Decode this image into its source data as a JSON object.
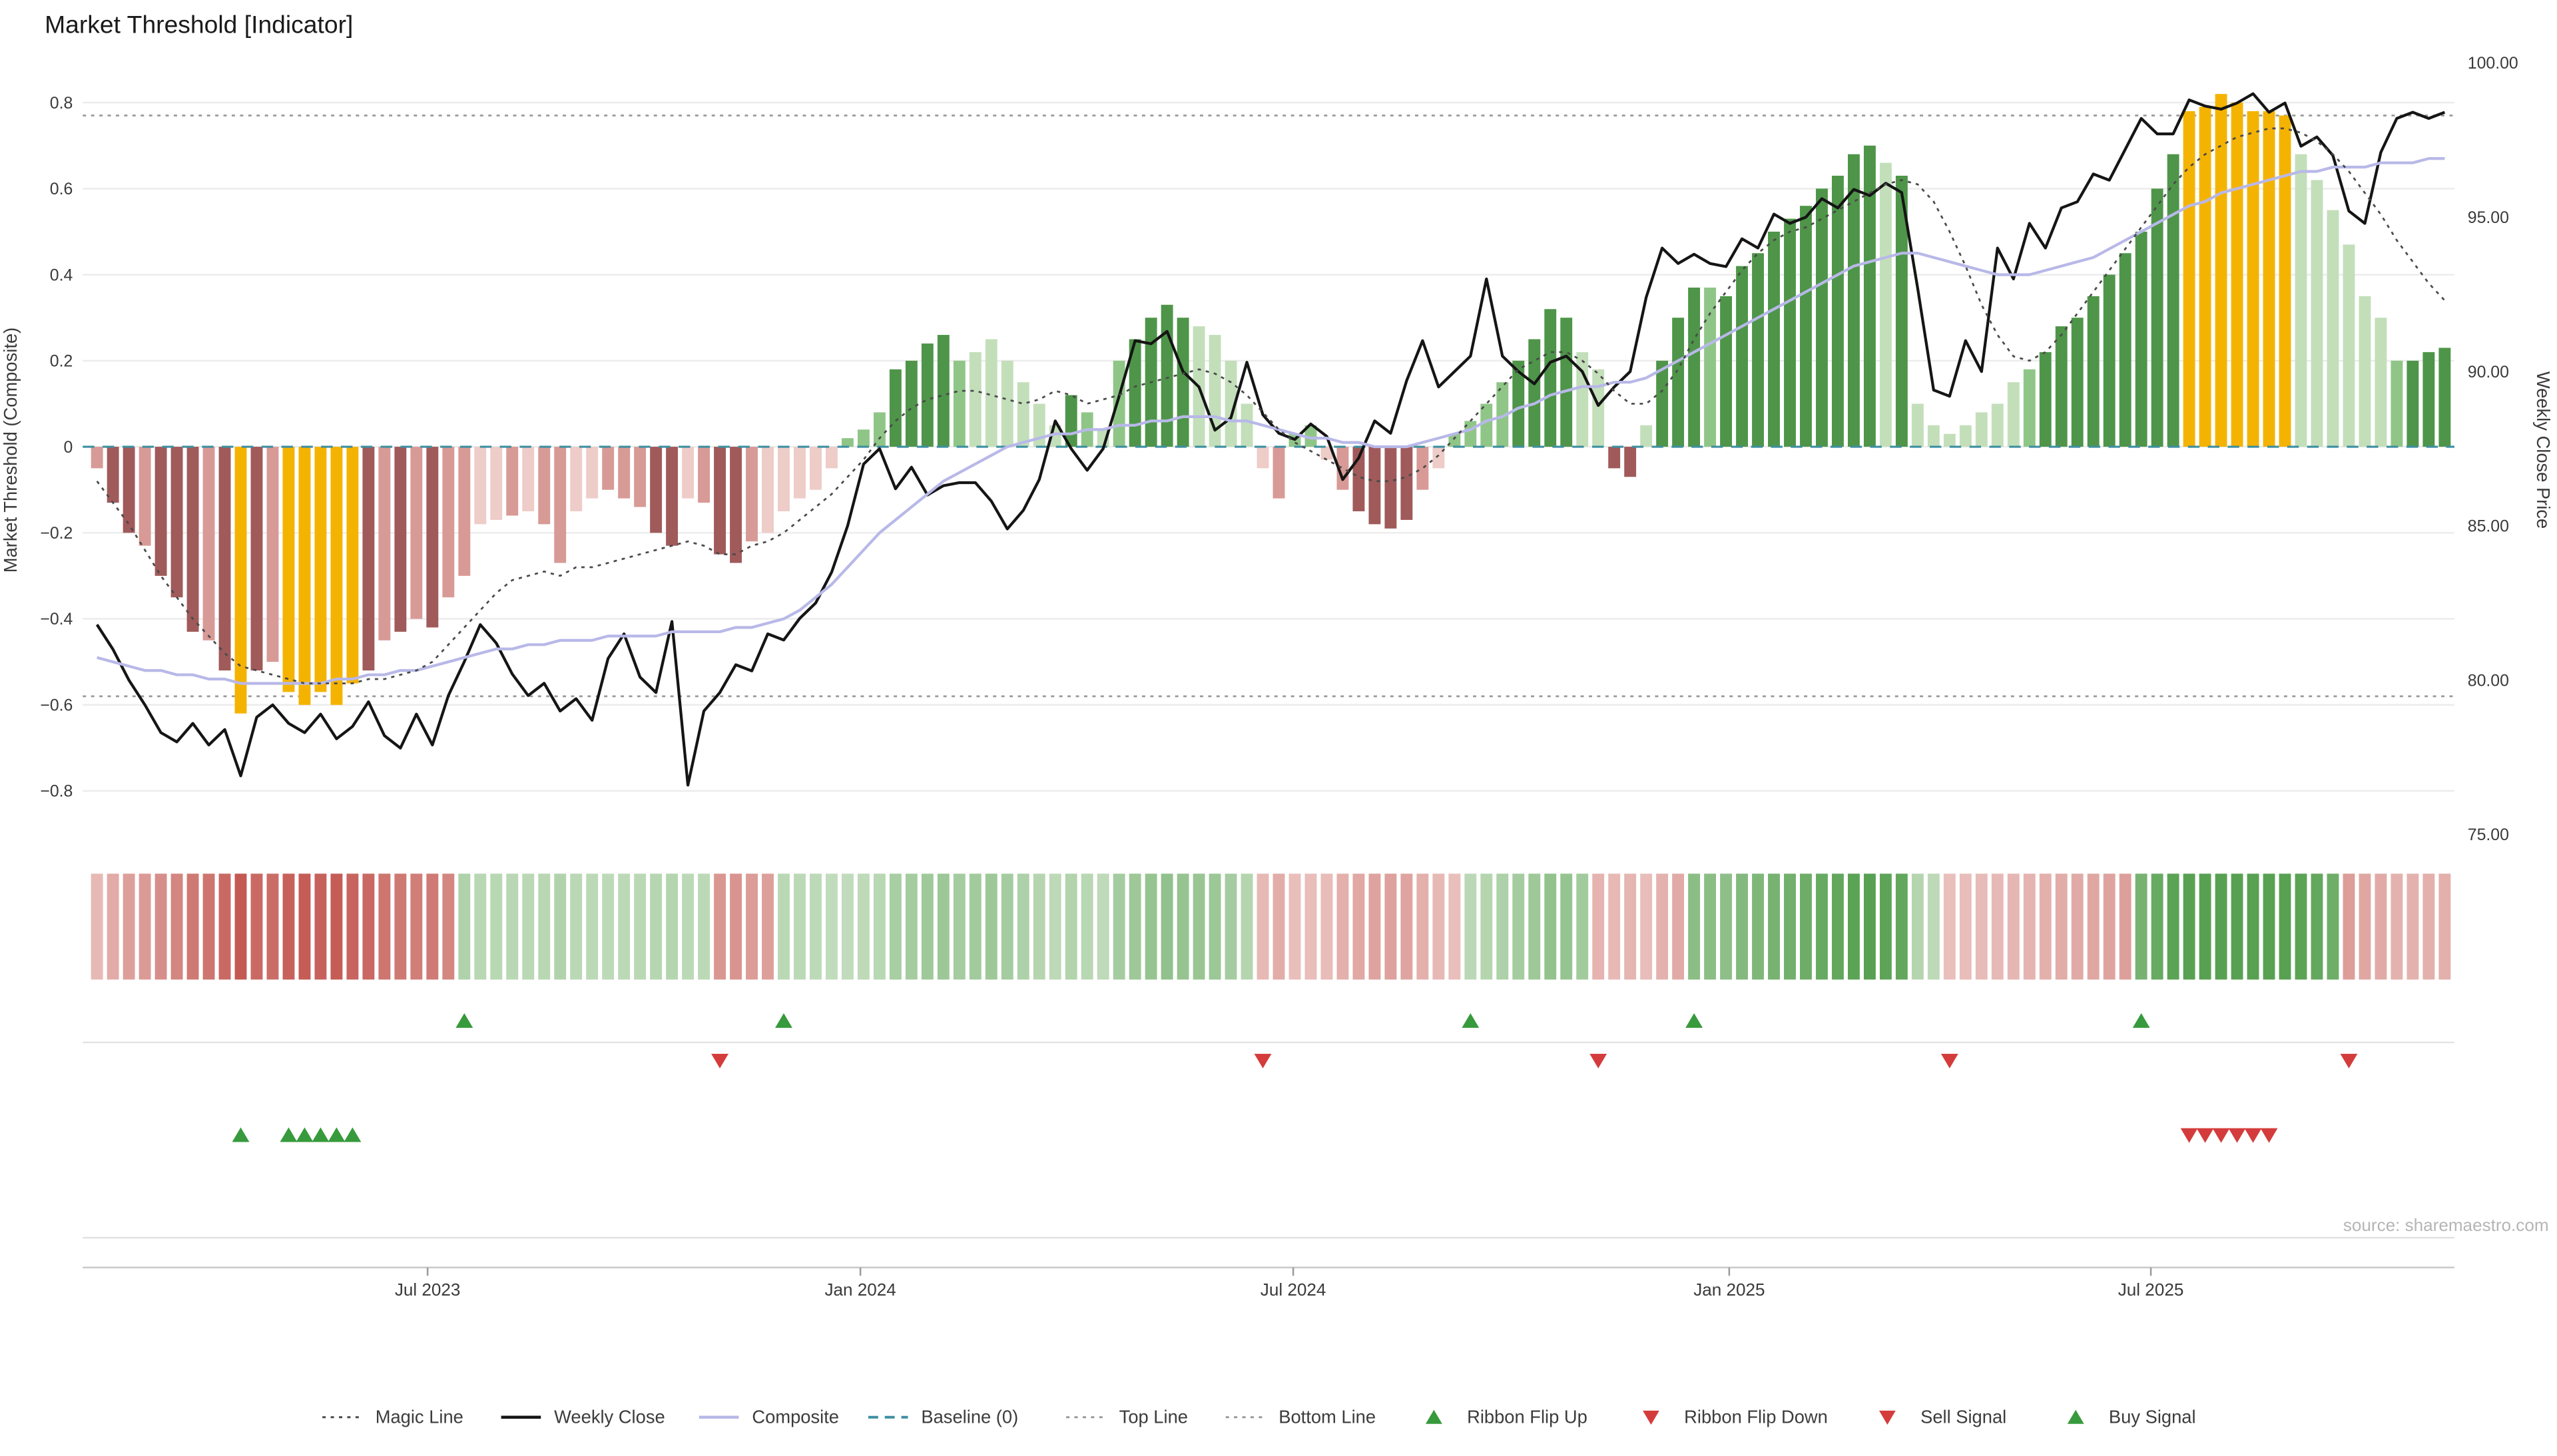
{
  "title": "Market Threshold [Indicator]",
  "source_note": "source: sharemaestro.com",
  "left_axis": {
    "label": "Market Threshold (Composite)",
    "tick_labels": [
      "0.8",
      "0.6",
      "0.4",
      "0.2",
      "0",
      "−0.2",
      "−0.4",
      "−0.6",
      "−0.8"
    ],
    "tick_values": [
      0.8,
      0.6,
      0.4,
      0.2,
      0,
      -0.2,
      -0.4,
      -0.6,
      -0.8
    ]
  },
  "right_axis": {
    "label": "Weekly Close Price",
    "tick_labels": [
      "100.00",
      "95.00",
      "90.00",
      "85.00",
      "80.00",
      "75.00"
    ],
    "tick_values": [
      100,
      95,
      90,
      85,
      80,
      75
    ]
  },
  "x_axis": {
    "tick_labels": [
      "Jul 2023",
      "Jan 2024",
      "Jul 2024",
      "Jan 2025",
      "Jul 2025"
    ],
    "tick_indices": [
      20.7,
      47.8,
      74.9,
      102.2,
      128.6
    ]
  },
  "chart_data": {
    "type": "combo",
    "n_weeks": 148,
    "bars": {
      "name": "Market Threshold (Composite)",
      "axis": "left",
      "values": [
        -0.05,
        -0.13,
        -0.2,
        -0.23,
        -0.3,
        -0.35,
        -0.43,
        -0.45,
        -0.52,
        -0.62,
        -0.52,
        -0.5,
        -0.57,
        -0.6,
        -0.57,
        -0.6,
        -0.55,
        -0.52,
        -0.45,
        -0.43,
        -0.4,
        -0.42,
        -0.35,
        -0.3,
        -0.18,
        -0.17,
        -0.16,
        -0.15,
        -0.18,
        -0.27,
        -0.15,
        -0.12,
        -0.1,
        -0.12,
        -0.14,
        -0.2,
        -0.23,
        -0.12,
        -0.13,
        -0.25,
        -0.27,
        -0.22,
        -0.2,
        -0.15,
        -0.12,
        -0.1,
        -0.05,
        0.02,
        0.04,
        0.08,
        0.18,
        0.2,
        0.24,
        0.26,
        0.2,
        0.22,
        0.25,
        0.2,
        0.15,
        0.1,
        0.05,
        0.12,
        0.08,
        0.04,
        0.2,
        0.25,
        0.3,
        0.33,
        0.3,
        0.28,
        0.26,
        0.2,
        0.1,
        -0.05,
        -0.12,
        0.03,
        0.05,
        -0.03,
        -0.1,
        -0.15,
        -0.18,
        -0.19,
        -0.17,
        -0.1,
        -0.05,
        0.03,
        0.06,
        0.1,
        0.15,
        0.2,
        0.25,
        0.32,
        0.3,
        0.22,
        0.18,
        -0.05,
        -0.07,
        0.05,
        0.2,
        0.3,
        0.37,
        0.37,
        0.35,
        0.42,
        0.45,
        0.5,
        0.53,
        0.56,
        0.6,
        0.63,
        0.68,
        0.7,
        0.66,
        0.63,
        0.1,
        0.05,
        0.03,
        0.05,
        0.08,
        0.1,
        0.15,
        0.18,
        0.22,
        0.28,
        0.3,
        0.35,
        0.4,
        0.45,
        0.5,
        0.6,
        0.68,
        0.78,
        0.79,
        0.82,
        0.8,
        0.78,
        0.78,
        0.77,
        0.68,
        0.62,
        0.55,
        0.47,
        0.35,
        0.3,
        0.2,
        0.2,
        0.22,
        0.23
      ],
      "colors": [
        "r",
        "dr",
        "dr",
        "r",
        "dr",
        "dr",
        "dr",
        "r",
        "dr",
        "au",
        "dr",
        "r",
        "au",
        "au",
        "au",
        "au",
        "au",
        "dr",
        "r",
        "dr",
        "r",
        "dr",
        "r",
        "r",
        "lr",
        "lr",
        "r",
        "lr",
        "r",
        "r",
        "lr",
        "lr",
        "r",
        "r",
        "r",
        "dr",
        "dr",
        "lr",
        "r",
        "dr",
        "dr",
        "r",
        "lr",
        "lr",
        "lr",
        "lr",
        "lr",
        "g",
        "g",
        "g",
        "dg",
        "dg",
        "dg",
        "dg",
        "g",
        "lg",
        "lg",
        "lg",
        "lg",
        "lg",
        "lg",
        "dg",
        "g",
        "lg",
        "g",
        "dg",
        "dg",
        "dg",
        "dg",
        "lg",
        "lg",
        "lg",
        "lg",
        "lr",
        "r",
        "g",
        "g",
        "lr",
        "r",
        "dr",
        "dr",
        "dr",
        "dr",
        "r",
        "lr",
        "g",
        "g",
        "g",
        "g",
        "dg",
        "dg",
        "dg",
        "dg",
        "lg",
        "lg",
        "dr",
        "dr",
        "lg",
        "dg",
        "dg",
        "dg",
        "g",
        "dg",
        "dg",
        "dg",
        "dg",
        "dg",
        "dg",
        "dg",
        "dg",
        "dg",
        "dg",
        "lg",
        "dg",
        "lg",
        "lg",
        "lg",
        "lg",
        "lg",
        "lg",
        "lg",
        "g",
        "dg",
        "dg",
        "dg",
        "dg",
        "dg",
        "dg",
        "dg",
        "dg",
        "dg",
        "au",
        "au",
        "au",
        "au",
        "au",
        "au",
        "au",
        "lg",
        "lg",
        "lg",
        "lg",
        "lg",
        "lg",
        "g",
        "dg",
        "dg",
        "dg"
      ]
    },
    "series": [
      {
        "name": "Weekly Close",
        "axis": "right",
        "style": "solid",
        "values": [
          81.8,
          81.0,
          80.0,
          79.2,
          78.3,
          78.0,
          78.6,
          77.9,
          78.4,
          76.9,
          78.8,
          79.2,
          78.6,
          78.3,
          78.9,
          78.1,
          78.5,
          79.3,
          78.2,
          77.8,
          78.9,
          77.9,
          79.5,
          80.6,
          81.8,
          81.2,
          80.2,
          79.5,
          79.9,
          79.0,
          79.4,
          78.7,
          80.7,
          81.5,
          80.1,
          79.6,
          81.9,
          76.6,
          79.0,
          79.6,
          80.5,
          80.3,
          81.5,
          81.3,
          82.0,
          82.5,
          83.5,
          85.0,
          87.0,
          87.5,
          86.2,
          86.9,
          86.0,
          86.3,
          86.4,
          86.4,
          85.8,
          84.9,
          85.5,
          86.5,
          88.4,
          87.5,
          86.8,
          87.5,
          89.2,
          91.0,
          90.9,
          91.3,
          90.0,
          89.5,
          88.1,
          88.5,
          90.3,
          88.6,
          88.0,
          87.8,
          88.3,
          87.9,
          86.5,
          87.2,
          88.4,
          88.0,
          89.7,
          91.0,
          89.5,
          90.0,
          90.5,
          93.0,
          90.5,
          90.0,
          89.6,
          90.3,
          90.5,
          90.0,
          88.9,
          89.5,
          90.0,
          92.4,
          94.0,
          93.5,
          93.8,
          93.5,
          93.4,
          94.3,
          94.0,
          95.1,
          94.8,
          95.0,
          95.6,
          95.3,
          95.9,
          95.7,
          96.1,
          95.8,
          92.7,
          89.4,
          89.2,
          91.0,
          90.0,
          94.0,
          93.0,
          94.8,
          94.0,
          95.3,
          95.5,
          96.4,
          96.2,
          97.2,
          98.2,
          97.7,
          97.7,
          98.8,
          98.6,
          98.5,
          98.7,
          99.0,
          98.4,
          98.7,
          97.3,
          97.6,
          97.0,
          95.2,
          94.8,
          97.1,
          98.2,
          98.4,
          98.2,
          98.4
        ]
      },
      {
        "name": "Composite",
        "axis": "left",
        "style": "solid",
        "values": [
          -0.49,
          -0.5,
          -0.51,
          -0.52,
          -0.52,
          -0.53,
          -0.53,
          -0.54,
          -0.54,
          -0.55,
          -0.55,
          -0.55,
          -0.55,
          -0.55,
          -0.55,
          -0.54,
          -0.54,
          -0.53,
          -0.53,
          -0.52,
          -0.52,
          -0.51,
          -0.5,
          -0.49,
          -0.48,
          -0.47,
          -0.47,
          -0.46,
          -0.46,
          -0.45,
          -0.45,
          -0.45,
          -0.44,
          -0.44,
          -0.44,
          -0.44,
          -0.43,
          -0.43,
          -0.43,
          -0.43,
          -0.42,
          -0.42,
          -0.41,
          -0.4,
          -0.38,
          -0.35,
          -0.32,
          -0.28,
          -0.24,
          -0.2,
          -0.17,
          -0.14,
          -0.11,
          -0.08,
          -0.06,
          -0.04,
          -0.02,
          0.0,
          0.01,
          0.02,
          0.03,
          0.03,
          0.04,
          0.04,
          0.05,
          0.05,
          0.06,
          0.06,
          0.07,
          0.07,
          0.07,
          0.06,
          0.06,
          0.05,
          0.04,
          0.03,
          0.02,
          0.02,
          0.01,
          0.01,
          0.0,
          0.0,
          0.0,
          0.01,
          0.02,
          0.03,
          0.04,
          0.06,
          0.07,
          0.09,
          0.1,
          0.12,
          0.13,
          0.14,
          0.14,
          0.15,
          0.15,
          0.16,
          0.18,
          0.2,
          0.22,
          0.24,
          0.26,
          0.28,
          0.3,
          0.32,
          0.34,
          0.36,
          0.38,
          0.4,
          0.42,
          0.43,
          0.44,
          0.45,
          0.45,
          0.44,
          0.43,
          0.42,
          0.41,
          0.4,
          0.4,
          0.4,
          0.41,
          0.42,
          0.43,
          0.44,
          0.46,
          0.48,
          0.5,
          0.52,
          0.54,
          0.56,
          0.57,
          0.59,
          0.6,
          0.61,
          0.62,
          0.63,
          0.64,
          0.64,
          0.65,
          0.65,
          0.65,
          0.66,
          0.66,
          0.66,
          0.67,
          0.67
        ]
      },
      {
        "name": "Magic Line",
        "axis": "left",
        "style": "dotted",
        "values": [
          -0.08,
          -0.13,
          -0.18,
          -0.24,
          -0.3,
          -0.35,
          -0.4,
          -0.44,
          -0.48,
          -0.51,
          -0.52,
          -0.53,
          -0.54,
          -0.55,
          -0.55,
          -0.55,
          -0.55,
          -0.54,
          -0.54,
          -0.53,
          -0.52,
          -0.5,
          -0.46,
          -0.42,
          -0.38,
          -0.34,
          -0.31,
          -0.3,
          -0.29,
          -0.3,
          -0.28,
          -0.28,
          -0.27,
          -0.26,
          -0.25,
          -0.24,
          -0.23,
          -0.22,
          -0.23,
          -0.25,
          -0.25,
          -0.23,
          -0.22,
          -0.2,
          -0.17,
          -0.14,
          -0.11,
          -0.07,
          -0.03,
          0.02,
          0.06,
          0.09,
          0.11,
          0.12,
          0.13,
          0.13,
          0.12,
          0.11,
          0.1,
          0.11,
          0.13,
          0.12,
          0.1,
          0.11,
          0.12,
          0.14,
          0.15,
          0.16,
          0.17,
          0.18,
          0.17,
          0.15,
          0.12,
          0.08,
          0.04,
          0.01,
          -0.01,
          -0.03,
          -0.05,
          -0.07,
          -0.08,
          -0.08,
          -0.07,
          -0.05,
          -0.02,
          0.02,
          0.06,
          0.1,
          0.14,
          0.18,
          0.2,
          0.22,
          0.22,
          0.2,
          0.17,
          0.13,
          0.1,
          0.1,
          0.13,
          0.18,
          0.25,
          0.31,
          0.36,
          0.41,
          0.45,
          0.48,
          0.5,
          0.51,
          0.53,
          0.55,
          0.57,
          0.59,
          0.61,
          0.62,
          0.61,
          0.57,
          0.5,
          0.42,
          0.33,
          0.26,
          0.21,
          0.2,
          0.22,
          0.26,
          0.31,
          0.36,
          0.41,
          0.46,
          0.51,
          0.56,
          0.61,
          0.65,
          0.68,
          0.7,
          0.72,
          0.73,
          0.74,
          0.74,
          0.73,
          0.71,
          0.68,
          0.64,
          0.59,
          0.54,
          0.48,
          0.43,
          0.38,
          0.34
        ]
      }
    ],
    "reference_lines": {
      "baseline": 0,
      "top_line": 0.77,
      "bottom_line": -0.58
    },
    "left_range": [
      -0.9,
      0.95
    ],
    "right_range": [
      75,
      100
    ],
    "signals": {
      "ribbon_flip_up": [
        23,
        43,
        86,
        100,
        128
      ],
      "ribbon_flip_down": [
        39,
        73,
        94,
        116,
        141
      ],
      "buy": [
        9,
        12,
        13,
        14,
        15,
        16
      ],
      "sell": [
        131,
        132,
        133,
        134,
        135,
        136
      ]
    },
    "ribbon_segments": [
      {
        "start": 0,
        "end": 22,
        "color": "red"
      },
      {
        "start": 23,
        "end": 38,
        "color": "green"
      },
      {
        "start": 39,
        "end": 42,
        "color": "red"
      },
      {
        "start": 43,
        "end": 72,
        "color": "green"
      },
      {
        "start": 73,
        "end": 85,
        "color": "red"
      },
      {
        "start": 86,
        "end": 93,
        "color": "green"
      },
      {
        "start": 94,
        "end": 99,
        "color": "red"
      },
      {
        "start": 100,
        "end": 115,
        "color": "green"
      },
      {
        "start": 116,
        "end": 127,
        "color": "red"
      },
      {
        "start": 128,
        "end": 140,
        "color": "green"
      },
      {
        "start": 141,
        "end": 147,
        "color": "red"
      }
    ]
  },
  "legend": {
    "items": [
      {
        "label": "Magic Line",
        "marker": "dotted-dark"
      },
      {
        "label": "Weekly Close",
        "marker": "solid-black"
      },
      {
        "label": "Composite",
        "marker": "lavender-line"
      },
      {
        "label": "Baseline (0)",
        "marker": "dashed-teal"
      },
      {
        "label": "Top Line",
        "marker": "dotted-gray"
      },
      {
        "label": "Bottom Line",
        "marker": "dotted-gray"
      },
      {
        "label": "Ribbon Flip Up",
        "marker": "triangle-up-green"
      },
      {
        "label": "Ribbon Flip Down",
        "marker": "triangle-down-red"
      },
      {
        "label": "Sell Signal",
        "marker": "triangle-down-red"
      },
      {
        "label": "Buy Signal",
        "marker": "triangle-up-green"
      }
    ]
  },
  "colors": {
    "bar_dark_red": "#a05a5a",
    "bar_red": "#d89a96",
    "bar_light_red": "#eeccc8",
    "bar_light_green": "#c3dfba",
    "bar_green": "#8fc687",
    "bar_dark_green": "#4e9549",
    "bar_gold": "#f5b301",
    "weekly_close": "#151515",
    "composite": "#b8b8e8",
    "magic": "#4a4a4a",
    "baseline": "#3d8fa1",
    "ref_line": "#9a9a9a",
    "grid": "#ececec",
    "flip_up": "#379a3c",
    "flip_down": "#d43c3c",
    "buy": "#379a3c",
    "sell": "#d43c3c",
    "ribbon_red_dark": "#bf4b45",
    "ribbon_red_light": "#f3dbd8",
    "ribbon_green_dark": "#58a152",
    "ribbon_green_light": "#dcebd7",
    "text": "#3a3a3a",
    "muted_text": "#b5b5b5"
  }
}
